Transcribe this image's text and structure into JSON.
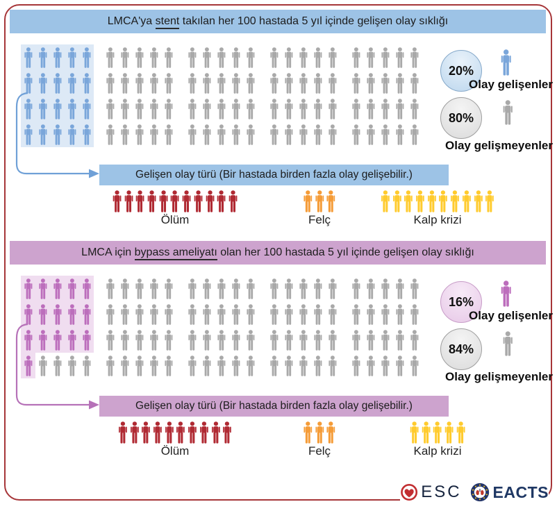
{
  "colors": {
    "frame_border": "#A63538",
    "gray_person": "#A9A9A9",
    "gray_circle_bg": "#DBDBDB",
    "text": "#1a1a1a"
  },
  "sections": [
    {
      "id": "stent",
      "theme": {
        "banner_bg": "#9DC3E6",
        "person": "#7AA6DA",
        "hl_bg": "#DDE9F6",
        "circle_bg": "#BDD7EE",
        "circle_hi": "#E9F2FA",
        "circle_border": "#85A8C9",
        "arrow": "#6FA0D7"
      },
      "header": {
        "prefix": "LMCA'ya ",
        "underlined": "stent",
        "suffix": " takılan her 100 hastada 5 yıl içinde gelişen olay sıklığı"
      },
      "grid": {
        "total": 100,
        "rows": 4,
        "cols": 25,
        "group_cols": 5,
        "highlighted": 20
      },
      "stats": [
        {
          "pct": "20%",
          "label": "Olay gelişenler",
          "person": "accent"
        },
        {
          "pct": "80%",
          "label": "Olay gelişmeyenler",
          "person": "gray"
        }
      ],
      "event_banner": "Gelişen olay türü (Bir hastada birden fazla olay gelişebilir.)",
      "events": [
        {
          "label": "Ölüm",
          "count": 11,
          "color": "#B02A33"
        },
        {
          "label": "Felç",
          "count": 3,
          "color": "#F59C38"
        },
        {
          "label": "Kalp krizi",
          "count": 10,
          "color": "#FFCB2E"
        }
      ]
    },
    {
      "id": "bypass",
      "theme": {
        "banner_bg": "#CDA3CE",
        "person": "#BC6EBC",
        "hl_bg": "#F0DDF0",
        "circle_bg": "#E7C8E7",
        "circle_hi": "#F7EAF7",
        "circle_border": "#C79CC7",
        "arrow": "#B671B8"
      },
      "header": {
        "prefix": "LMCA için ",
        "underlined": "bypass ameliyatı",
        "suffix": " olan her 100 hastada 5 yıl içinde gelişen olay sıklığı"
      },
      "grid": {
        "total": 100,
        "rows": 4,
        "cols": 25,
        "group_cols": 5,
        "highlighted": 16
      },
      "stats": [
        {
          "pct": "16%",
          "label": "Olay gelişenler",
          "person": "accent"
        },
        {
          "pct": "84%",
          "label": "Olay gelişmeyenler",
          "person": "gray"
        }
      ],
      "event_banner": "Gelişen olay türü (Bir hastada birden fazla olay gelişebilir.)",
      "events": [
        {
          "label": "Ölüm",
          "count": 10,
          "color": "#B02A33"
        },
        {
          "label": "Felç",
          "count": 3,
          "color": "#F59C38"
        },
        {
          "label": "Kalp krizi",
          "count": 5,
          "color": "#FFCB2E"
        }
      ]
    }
  ],
  "footer": {
    "esc_label": "ESC",
    "eacts_label": "EACTS"
  },
  "chart_data": [
    {
      "type": "pictogram",
      "title": "LMCA'ya stent takılan her 100 hastada 5 yıl içinde gelişen olay sıklığı",
      "total_patients": 100,
      "categories": [
        "Olay gelişenler",
        "Olay gelişmeyenler"
      ],
      "values": [
        20,
        80
      ],
      "units": "percent",
      "event_breakdown": {
        "Ölüm": 11,
        "Felç": 3,
        "Kalp krizi": 10
      },
      "note": "Gelişen olay türü (Bir hastada birden fazla olay gelişebilir.)"
    },
    {
      "type": "pictogram",
      "title": "LMCA için bypass ameliyatı olan her 100 hastada 5 yıl içinde gelişen olay sıklığı",
      "total_patients": 100,
      "categories": [
        "Olay gelişenler",
        "Olay gelişmeyenler"
      ],
      "values": [
        16,
        84
      ],
      "units": "percent",
      "event_breakdown": {
        "Ölüm": 10,
        "Felç": 3,
        "Kalp krizi": 5
      },
      "note": "Gelişen olay türü (Bir hastada birden fazla olay gelişebilir.)"
    }
  ]
}
